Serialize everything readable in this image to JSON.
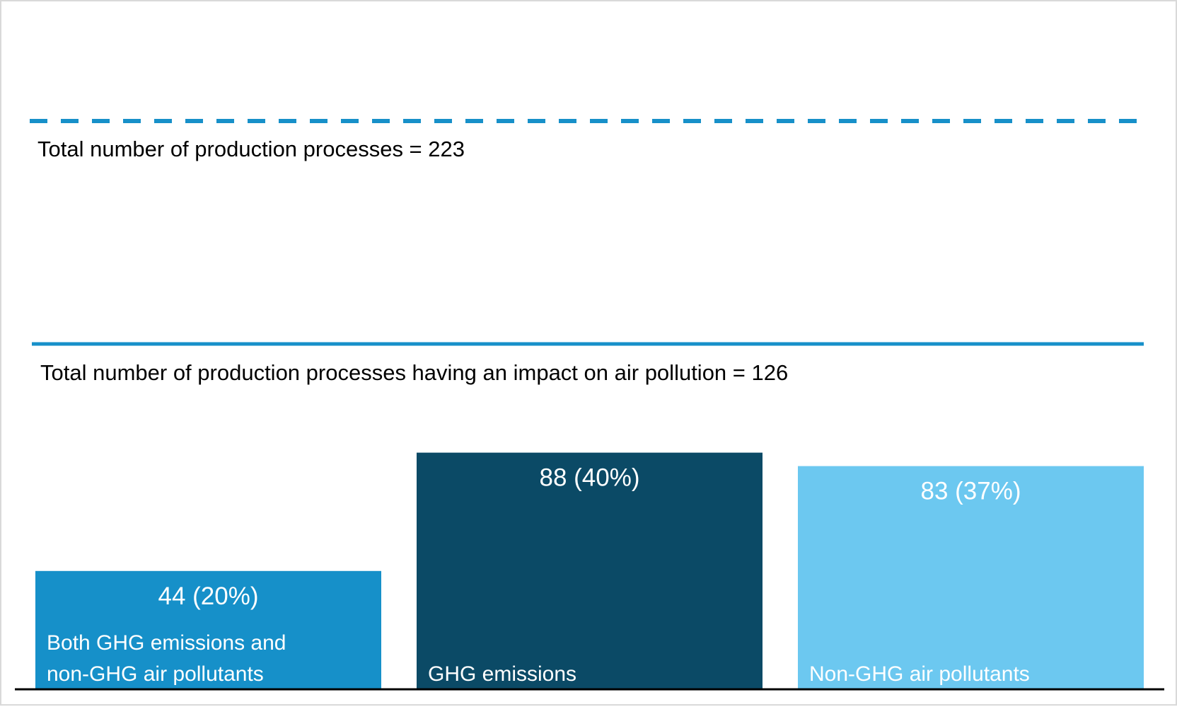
{
  "chart_data": {
    "type": "bar",
    "title": "",
    "xlabel": "",
    "ylabel": "",
    "ylim": [
      0,
      223
    ],
    "grid": false,
    "reference_lines": [
      {
        "label": "Total number of production processes = 223",
        "value": 223,
        "style": "dashed"
      },
      {
        "label": "Total number of production processes having an impact on air pollution = 126",
        "value": 126,
        "style": "solid"
      }
    ],
    "categories": [
      "Both GHG emissions and non-GHG air pollutants",
      "GHG emissions",
      "Non-GHG air pollutants"
    ],
    "category_lines": [
      [
        "Both GHG emissions and",
        "non-GHG air pollutants"
      ],
      [
        "GHG emissions"
      ],
      [
        "Non-GHG air pollutants"
      ]
    ],
    "values": [
      44,
      88,
      83
    ],
    "percentages": [
      20,
      40,
      37
    ],
    "data_labels": [
      "44 (20%)",
      "88 (40%)",
      "83 (37%)"
    ],
    "colors": [
      "#1690c9",
      "#0b4a66",
      "#6cc8f0"
    ],
    "line_color": "#1790c9",
    "axis_color": "#000000"
  }
}
